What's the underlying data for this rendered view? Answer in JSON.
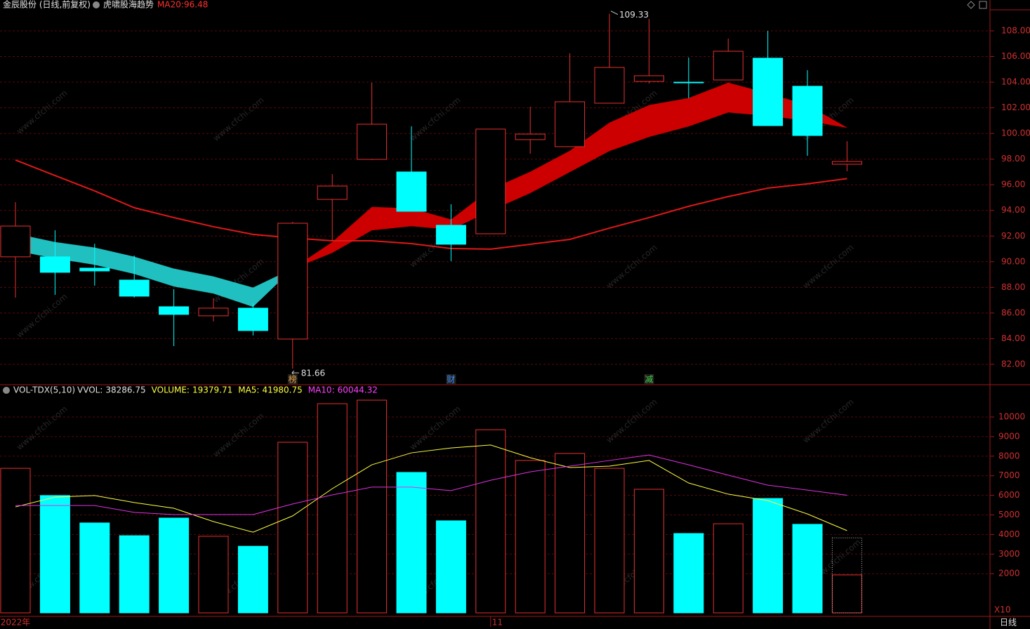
{
  "chart_data": {
    "type": "candlestick",
    "title": "金辰股份 (日线,前复权)",
    "indicator": "虎啸股海趋势",
    "ma20_label": "MA20:",
    "candles": {
      "open": [
        90.38,
        90.38,
        89.5,
        88.57,
        86.49,
        85.78,
        86.38,
        83.97,
        94.86,
        97.98,
        97.0,
        92.84,
        92.18,
        99.52,
        98.97,
        102.36,
        104.06,
        104.0,
        104.17,
        105.87,
        103.68,
        97.6
      ],
      "high": [
        94.64,
        92.45,
        91.4,
        90.48,
        87.86,
        87.15,
        86.76,
        93.11,
        96.83,
        103.95,
        100.56,
        94.48,
        100.34,
        102.09,
        106.25,
        109.33,
        108.93,
        105.92,
        107.4,
        108.0,
        104.93,
        99.4
      ],
      "low": [
        87.2,
        87.42,
        88.13,
        87.2,
        83.42,
        85.34,
        84.25,
        81.66,
        91.63,
        97.93,
        93.9,
        90.05,
        92.18,
        98.42,
        98.97,
        102.36,
        103.9,
        102.75,
        104.17,
        100.61,
        98.26,
        97.05
      ],
      "close": [
        92.78,
        89.17,
        89.28,
        87.31,
        85.89,
        86.38,
        84.63,
        93.0,
        95.9,
        100.72,
        93.93,
        91.36,
        100.34,
        99.95,
        102.47,
        105.15,
        104.5,
        104.0,
        106.41,
        100.61,
        99.84,
        97.82
      ]
    },
    "ma20": [
      97.93,
      96.72,
      95.52,
      94.21,
      93.44,
      92.73,
      92.13,
      91.85,
      91.63,
      91.63,
      91.41,
      91.03,
      90.98,
      91.36,
      91.74,
      92.62,
      93.44,
      94.32,
      95.08,
      95.74,
      96.07,
      96.48
    ],
    "ma20_color": "#e01818",
    "band": [
      [
        90.87,
        90.27,
        89.77,
        89.06,
        88.08,
        87.53,
        86.49,
        89.45,
        91.52,
        94.26,
        94.15,
        93.28,
        95.63,
        97.0,
        98.64,
        100.83,
        102.2,
        102.75,
        103.95,
        103.13,
        102.2,
        100.45
      ],
      [
        92.18,
        91.52,
        91.09,
        90.38,
        89.45,
        88.84,
        87.97,
        89.45,
        90.7,
        92.46,
        92.78,
        92.51,
        93.99,
        95.36,
        97.0,
        98.64,
        99.74,
        100.56,
        101.65,
        101.38,
        100.99,
        100.45
      ]
    ],
    "up_color": "#e83030",
    "down_color": "#00ffff",
    "band_up_color": "#cc0000",
    "band_down_color": "#20c0c0",
    "ylim": [
      80.41,
      109.64
    ],
    "yticks": [
      {
        "value": 82,
        "label": "82.00"
      },
      {
        "value": 84,
        "label": "84.00"
      },
      {
        "value": 86,
        "label": "86.00"
      },
      {
        "value": 88,
        "label": "88.00"
      },
      {
        "value": 90,
        "label": "90.00"
      },
      {
        "value": 92,
        "label": "92.00"
      },
      {
        "value": 94,
        "label": "94.00"
      },
      {
        "value": 96,
        "label": "96.00"
      },
      {
        "value": 98,
        "label": "98.00"
      },
      {
        "value": 100,
        "label": "100.00"
      },
      {
        "value": 102,
        "label": "102.00"
      },
      {
        "value": 104,
        "label": "104.00"
      },
      {
        "value": 106,
        "label": "106.00"
      },
      {
        "value": 108,
        "label": "108.00"
      }
    ],
    "markers": [
      {
        "text": "榜",
        "index": 7,
        "color": "#e8a040"
      },
      {
        "text": "财",
        "index": 11,
        "color": "#4090ff"
      },
      {
        "text": "减",
        "index": 16,
        "color": "#40d040"
      }
    ],
    "x_labels": [
      {
        "label": "2022年",
        "index": 0
      },
      {
        "label": "11",
        "index": 12
      }
    ],
    "period": "日线",
    "watermark": "www.cfchi.com",
    "volume": {
      "title": "VOL-TDX(5,10)",
      "fields": [
        {
          "label": "VVOL:",
          "value": 38286.75,
          "color": "#e0e0e0"
        },
        {
          "label": "VOLUME:",
          "value": 19379.71,
          "color": "#ffff40"
        },
        {
          "label": "MA5:",
          "value": 41980.75,
          "color": "#ffff40"
        },
        {
          "label": "MA10:",
          "value": 60044.32,
          "color": "#ff40ff"
        }
      ],
      "values": [
        7380,
        5990,
        4590,
        3940,
        4840,
        3910,
        3400,
        8710,
        10680,
        10860,
        7170,
        4700,
        9350,
        7780,
        8140,
        7380,
        6310,
        4050,
        4550,
        5840,
        4520,
        1937.971
      ],
      "vvol": 3828.675,
      "ma5": [
        5410,
        5910,
        5990,
        5630,
        5340,
        4660,
        4120,
        4950,
        6340,
        7560,
        8170,
        8420,
        8570,
        7920,
        7420,
        7490,
        7780,
        6630,
        6060,
        5730,
        5050,
        4198.075
      ],
      "ma10": [
        5480,
        5480,
        5480,
        5130,
        5020,
        5020,
        5020,
        5560,
        6020,
        6420,
        6420,
        6240,
        6770,
        7200,
        7490,
        7780,
        8060,
        7560,
        7030,
        6520,
        6270,
        6004.432
      ],
      "ma5_color": "#ffff40",
      "ma10_color": "#e030e0",
      "ylim": [
        0,
        11613
      ],
      "yticks": [
        2000,
        3000,
        4000,
        5000,
        6000,
        7000,
        8000,
        9000,
        10000
      ],
      "unit": "X10"
    }
  }
}
